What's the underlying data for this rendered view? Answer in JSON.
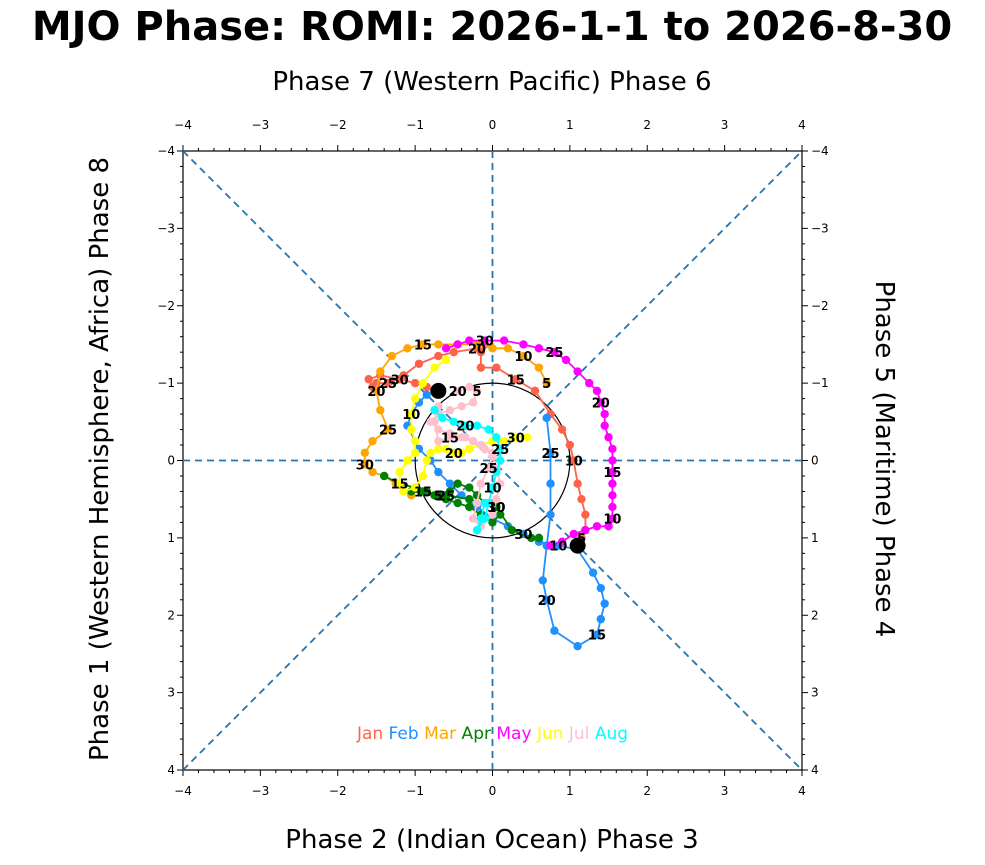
{
  "chart_data": {
    "type": "scatter",
    "title": "MJO Phase: ROMI: 2026-1-1 to 2026-8-30",
    "xlabel_top": "Phase 7 (Western Pacific) Phase 6",
    "xlabel_bottom": "Phase 2 (Indian Ocean) Phase 3",
    "ylabel_left": "Phase 1 (Western Hemisphere, Africa) Phase 8",
    "ylabel_right": "Phase 5 (Maritime) Phase 4",
    "xlim": [
      -4,
      4
    ],
    "ylim": [
      -4,
      4
    ],
    "ticks": [
      "−4",
      "−3",
      "−2",
      "−1",
      "0",
      "1",
      "2",
      "3",
      "4"
    ],
    "unit_circle_radius": 1,
    "series": [
      {
        "name": "Jan",
        "color": "#ff6347",
        "points": [
          [
            1.1,
            -1.1
          ],
          [
            1.15,
            -1.0
          ],
          [
            1.2,
            -0.9
          ],
          [
            1.2,
            -0.7
          ],
          [
            1.15,
            -0.5
          ],
          [
            1.1,
            -0.3
          ],
          [
            1.05,
            0.0
          ],
          [
            1.0,
            0.2
          ],
          [
            0.9,
            0.4
          ],
          [
            0.75,
            0.6
          ],
          [
            0.55,
            0.9
          ],
          [
            0.3,
            1.05
          ],
          [
            0.05,
            1.2
          ],
          [
            -0.15,
            1.2
          ],
          [
            -0.15,
            1.4
          ],
          [
            -0.1,
            1.5
          ],
          [
            -0.2,
            1.45
          ],
          [
            -0.5,
            1.4
          ],
          [
            -0.7,
            1.35
          ],
          [
            -0.95,
            1.25
          ],
          [
            -1.15,
            1.1
          ],
          [
            -1.35,
            1.0
          ],
          [
            -1.5,
            1.0
          ],
          [
            -1.55,
            0.95
          ],
          [
            -1.6,
            1.05
          ],
          [
            -1.45,
            1.1
          ],
          [
            -1.2,
            1.05
          ],
          [
            -1.0,
            1.0
          ],
          [
            -0.85,
            0.95
          ],
          [
            -0.75,
            0.9
          ]
        ],
        "labels": [
          [
            1,
            "5"
          ],
          [
            6,
            "10"
          ],
          [
            11,
            "15"
          ],
          [
            16,
            "20"
          ],
          [
            21,
            "25"
          ],
          [
            26,
            "30"
          ]
        ]
      },
      {
        "name": "Feb",
        "color": "#1e90ff",
        "points": [
          [
            -0.85,
            0.85
          ],
          [
            -0.95,
            0.75
          ],
          [
            -1.05,
            0.6
          ],
          [
            -1.1,
            0.45
          ],
          [
            -0.95,
            0.15
          ],
          [
            -0.8,
            0.0
          ],
          [
            -0.7,
            -0.15
          ],
          [
            -0.55,
            -0.3
          ],
          [
            -0.4,
            -0.45
          ],
          [
            -0.2,
            -0.6
          ],
          [
            0.0,
            -0.75
          ],
          [
            0.2,
            -0.85
          ],
          [
            0.4,
            -0.95
          ],
          [
            0.6,
            -1.05
          ],
          [
            0.85,
            -1.1
          ],
          [
            1.1,
            -1.15
          ],
          [
            1.3,
            -1.45
          ],
          [
            1.4,
            -1.65
          ],
          [
            1.45,
            -1.85
          ],
          [
            1.4,
            -2.05
          ],
          [
            1.35,
            -2.25
          ],
          [
            1.1,
            -2.4
          ],
          [
            0.8,
            -2.2
          ],
          [
            0.7,
            -1.8
          ],
          [
            0.65,
            -1.55
          ],
          [
            0.7,
            -1.1
          ],
          [
            0.75,
            -0.7
          ],
          [
            0.75,
            -0.3
          ],
          [
            0.75,
            0.1
          ],
          [
            0.7,
            0.55
          ]
        ],
        "labels": [
          [
            12,
            "30"
          ],
          [
            14,
            "10"
          ],
          [
            20,
            "15"
          ],
          [
            23,
            "20"
          ],
          [
            28,
            "25"
          ]
        ]
      },
      {
        "name": "Mar",
        "color": "#ffa500",
        "points": [
          [
            0.7,
            1.0
          ],
          [
            0.6,
            1.2
          ],
          [
            0.4,
            1.35
          ],
          [
            0.2,
            1.45
          ],
          [
            0.0,
            1.45
          ],
          [
            -0.2,
            1.5
          ],
          [
            -0.45,
            1.5
          ],
          [
            -0.7,
            1.5
          ],
          [
            -0.9,
            1.5
          ],
          [
            -1.1,
            1.45
          ],
          [
            -1.3,
            1.35
          ],
          [
            -1.45,
            1.15
          ],
          [
            -1.5,
            0.9
          ],
          [
            -1.45,
            0.65
          ],
          [
            -1.35,
            0.4
          ],
          [
            -1.55,
            0.25
          ],
          [
            -1.65,
            0.1
          ],
          [
            -1.65,
            -0.05
          ],
          [
            -1.55,
            -0.15
          ],
          [
            -1.4,
            -0.2
          ],
          [
            -1.25,
            -0.3
          ],
          [
            -1.15,
            -0.4
          ],
          [
            -1.05,
            -0.45
          ]
        ],
        "labels": [
          [
            0,
            "5"
          ],
          [
            2,
            "10"
          ],
          [
            8,
            "15"
          ],
          [
            12,
            "20"
          ],
          [
            14,
            "25"
          ],
          [
            17,
            "30"
          ]
        ]
      },
      {
        "name": "Apr",
        "color": "#008000",
        "points": [
          [
            -1.4,
            -0.2
          ],
          [
            -1.2,
            -0.3
          ],
          [
            -1.0,
            -0.35
          ],
          [
            -0.85,
            -0.4
          ],
          [
            -0.7,
            -0.45
          ],
          [
            -0.55,
            -0.4
          ],
          [
            -0.45,
            -0.3
          ],
          [
            -0.3,
            -0.35
          ],
          [
            -0.2,
            -0.45
          ],
          [
            -0.1,
            -0.55
          ],
          [
            0.05,
            -0.6
          ],
          [
            0.1,
            -0.7
          ],
          [
            0.0,
            -0.8
          ],
          [
            -0.15,
            -0.7
          ],
          [
            -0.3,
            -0.6
          ],
          [
            -0.45,
            -0.55
          ],
          [
            -0.6,
            -0.5
          ],
          [
            -0.75,
            -0.45
          ],
          [
            -0.9,
            -0.4
          ],
          [
            -1.05,
            -0.4
          ],
          [
            -0.6,
            -0.45
          ],
          [
            -0.3,
            -0.5
          ],
          [
            0.05,
            -0.6
          ],
          [
            0.25,
            -0.9
          ],
          [
            0.5,
            -1.0
          ],
          [
            0.6,
            -1.0
          ]
        ],
        "labels": [
          [
            4,
            "5"
          ],
          [
            10,
            "10"
          ],
          [
            18,
            "15"
          ],
          [
            20,
            "25"
          ],
          [
            22,
            "30"
          ]
        ]
      },
      {
        "name": "May",
        "color": "#ff00ff",
        "points": [
          [
            0.75,
            -1.1
          ],
          [
            0.9,
            -1.05
          ],
          [
            1.05,
            -0.95
          ],
          [
            1.2,
            -0.9
          ],
          [
            1.35,
            -0.85
          ],
          [
            1.5,
            -0.85
          ],
          [
            1.55,
            -0.75
          ],
          [
            1.55,
            -0.6
          ],
          [
            1.55,
            -0.45
          ],
          [
            1.55,
            -0.3
          ],
          [
            1.55,
            -0.15
          ],
          [
            1.55,
            0.0
          ],
          [
            1.55,
            0.15
          ],
          [
            1.5,
            0.3
          ],
          [
            1.45,
            0.45
          ],
          [
            1.45,
            0.6
          ],
          [
            1.4,
            0.75
          ],
          [
            1.35,
            0.9
          ],
          [
            1.25,
            1.0
          ],
          [
            1.1,
            1.15
          ],
          [
            0.95,
            1.3
          ],
          [
            0.8,
            1.4
          ],
          [
            0.6,
            1.45
          ],
          [
            0.4,
            1.5
          ],
          [
            0.15,
            1.55
          ],
          [
            -0.1,
            1.55
          ],
          [
            -0.3,
            1.55
          ],
          [
            -0.45,
            1.5
          ],
          [
            -0.6,
            1.45
          ]
        ],
        "labels": [
          [
            6,
            "10"
          ],
          [
            10,
            "15"
          ],
          [
            16,
            "20"
          ],
          [
            21,
            "25"
          ],
          [
            25,
            "30"
          ]
        ]
      },
      {
        "name": "Jun",
        "color": "#ffff00",
        "points": [
          [
            -0.6,
            1.3
          ],
          [
            -0.75,
            1.2
          ],
          [
            -0.9,
            1.0
          ],
          [
            -1.0,
            0.8
          ],
          [
            -1.05,
            0.6
          ],
          [
            -1.05,
            0.4
          ],
          [
            -1.0,
            0.25
          ],
          [
            -1.0,
            0.1
          ],
          [
            -1.1,
            0.0
          ],
          [
            -1.2,
            -0.15
          ],
          [
            -1.2,
            -0.3
          ],
          [
            -1.15,
            -0.4
          ],
          [
            -1.0,
            -0.35
          ],
          [
            -0.9,
            -0.2
          ],
          [
            -0.85,
            0.0
          ],
          [
            -0.8,
            0.1
          ],
          [
            -0.7,
            0.15
          ],
          [
            -0.6,
            0.15
          ],
          [
            -0.5,
            0.1
          ],
          [
            -0.4,
            0.1
          ],
          [
            -0.3,
            0.15
          ],
          [
            -0.15,
            0.2
          ],
          [
            0.0,
            0.25
          ],
          [
            0.15,
            0.25
          ],
          [
            0.3,
            0.3
          ],
          [
            0.45,
            0.3
          ]
        ],
        "labels": [
          [
            4,
            "10"
          ],
          [
            10,
            "15"
          ],
          [
            18,
            "20"
          ],
          [
            24,
            "30"
          ]
        ]
      },
      {
        "name": "Jul",
        "color": "#ffc0cb",
        "points": [
          [
            -0.45,
            0.9
          ],
          [
            -0.3,
            0.95
          ],
          [
            -0.2,
            0.9
          ],
          [
            -0.25,
            0.75
          ],
          [
            -0.4,
            0.7
          ],
          [
            -0.55,
            0.65
          ],
          [
            -0.7,
            0.6
          ],
          [
            -0.8,
            0.5
          ],
          [
            -0.7,
            0.4
          ],
          [
            -0.55,
            0.35
          ],
          [
            -0.4,
            0.3
          ],
          [
            -0.25,
            0.25
          ],
          [
            -0.1,
            0.15
          ],
          [
            0.0,
            0.05
          ],
          [
            -0.05,
            -0.1
          ],
          [
            -0.15,
            -0.3
          ],
          [
            -0.2,
            -0.55
          ],
          [
            -0.25,
            -0.75
          ],
          [
            -0.15,
            -0.85
          ],
          [
            0.0,
            -0.7
          ],
          [
            0.05,
            -0.5
          ],
          [
            0.1,
            -0.3
          ],
          [
            0.05,
            -0.1
          ],
          [
            0.0,
            0.1
          ],
          [
            -0.15,
            0.2
          ],
          [
            -0.35,
            0.3
          ],
          [
            -0.55,
            0.3
          ],
          [
            -0.7,
            0.25
          ],
          [
            -0.75,
            0.5
          ],
          [
            -0.7,
            0.7
          ]
        ],
        "labels": [
          [
            0,
            "20"
          ],
          [
            2,
            "5"
          ],
          [
            14,
            "25"
          ],
          [
            26,
            "15"
          ]
        ]
      },
      {
        "name": "Aug",
        "color": "#00ffff",
        "points": [
          [
            -0.75,
            0.65
          ],
          [
            -0.65,
            0.55
          ],
          [
            -0.5,
            0.5
          ],
          [
            -0.35,
            0.45
          ],
          [
            -0.2,
            0.45
          ],
          [
            -0.05,
            0.4
          ],
          [
            0.05,
            0.3
          ],
          [
            0.1,
            0.15
          ],
          [
            0.1,
            0.0
          ],
          [
            0.05,
            -0.15
          ],
          [
            0.0,
            -0.35
          ],
          [
            -0.05,
            -0.55
          ],
          [
            -0.1,
            -0.75
          ],
          [
            -0.2,
            -0.9
          ],
          [
            -0.15,
            -0.75
          ],
          [
            -0.1,
            -0.55
          ]
        ],
        "labels": [
          [
            3,
            "20"
          ],
          [
            7,
            "25"
          ],
          [
            10,
            "10"
          ]
        ]
      }
    ],
    "end_marker": [
      -0.7,
      0.9
    ],
    "legend": [
      "Jan",
      "Feb",
      "Mar",
      "Apr",
      "May",
      "Jun",
      "Jul",
      "Aug"
    ],
    "legend_position": "bottom-center",
    "grid": false
  }
}
